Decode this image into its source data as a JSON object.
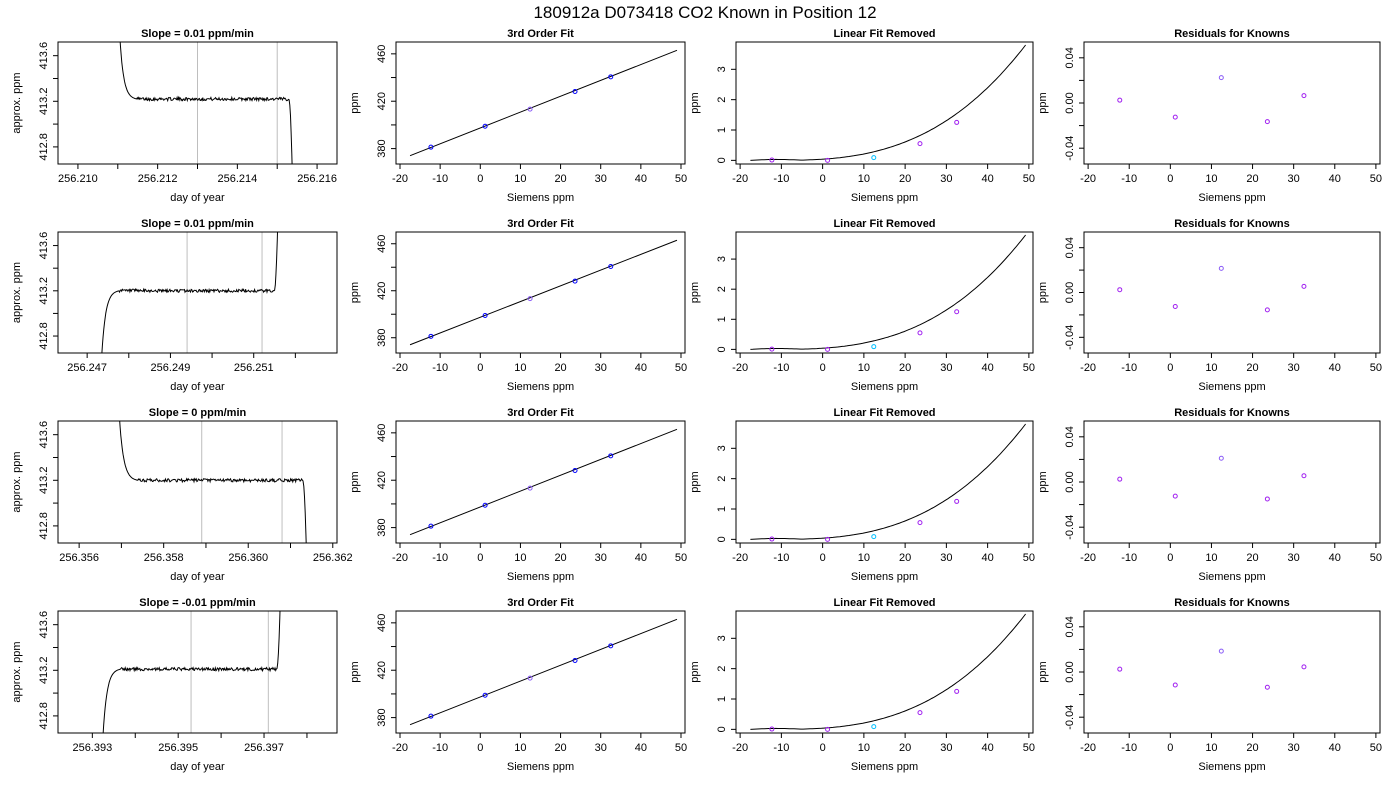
{
  "figure": {
    "title": "180912a      D073418    CO2 Known in Position  12"
  },
  "colors": {
    "axis": "#000000",
    "line": "#000000",
    "vline": "#bebebe",
    "point_blue": "#0000ff",
    "point_purple": "#a020f0",
    "point_cyan": "#00bfff",
    "point_violet": "#8a5cf6"
  },
  "common": {
    "day_xlabel": "day of year",
    "day_ylabel": "approx. ppm",
    "day_yticks": [
      "412.8",
      "413.2",
      "413.6"
    ],
    "fit_title": "3rd Order Fit",
    "lin_title": "Linear Fit Removed",
    "res_title": "Residuals for Knowns",
    "siemens_xlabel": "Siemens ppm",
    "ppm_ylabel": "ppm",
    "siemens_xticks": [
      "-20",
      "-10",
      "0",
      "10",
      "20",
      "30",
      "40",
      "50"
    ],
    "fit_yticks": [
      "380",
      "420",
      "460"
    ],
    "lin_yticks": [
      "0",
      "1",
      "2",
      "3"
    ],
    "res_yticks": [
      "-0.04",
      "0.00",
      "0.04"
    ]
  },
  "rows": [
    {
      "slope_title": "Slope =  0.01  ppm/min",
      "day_xticks": [
        "256.210",
        "256.212",
        "256.214",
        "256.216"
      ]
    },
    {
      "slope_title": "Slope =  0.01  ppm/min",
      "day_xticks": [
        "256.247",
        "256.249",
        "256.251"
      ]
    },
    {
      "slope_title": "Slope =  0  ppm/min",
      "day_xticks": [
        "256.356",
        "256.358",
        "256.360",
        "256.362"
      ]
    },
    {
      "slope_title": "Slope =  -0.01  ppm/min",
      "day_xticks": [
        "256.393",
        "256.395",
        "256.397"
      ]
    }
  ],
  "chart_data": [
    {
      "type": "line",
      "row": 0,
      "panel": "time-series",
      "xlabel": "day of year",
      "ylabel": "approx. ppm",
      "xlim": [
        256.2095,
        256.2165
      ],
      "ylim": [
        412.65,
        413.72
      ],
      "xticks": [
        256.21,
        256.211,
        256.212,
        256.213,
        256.214,
        256.215,
        256.216
      ],
      "yticks": [
        412.8,
        413.0,
        413.2,
        413.4,
        413.6
      ],
      "vlines": [
        256.213,
        256.215
      ],
      "trace_start": "high",
      "trace_end": "low",
      "trace_xrange": [
        256.211,
        256.2154
      ],
      "level": 413.22
    },
    {
      "type": "line",
      "row": 1,
      "panel": "time-series",
      "xlabel": "day of year",
      "ylabel": "approx. ppm",
      "xlim": [
        256.2463,
        256.253
      ],
      "ylim": [
        412.65,
        413.72
      ],
      "xticks": [
        256.247,
        256.248,
        256.249,
        256.25,
        256.251,
        256.252
      ],
      "yticks": [
        412.8,
        413.0,
        413.2,
        413.4,
        413.6
      ],
      "vlines": [
        256.2494,
        256.2512
      ],
      "trace_start": "low",
      "trace_end": "high",
      "trace_xrange": [
        256.2473,
        256.2516
      ],
      "level": 413.2
    },
    {
      "type": "line",
      "row": 2,
      "panel": "time-series",
      "xlabel": "day of year",
      "ylabel": "approx. ppm",
      "xlim": [
        256.3555,
        256.3621
      ],
      "ylim": [
        412.65,
        413.72
      ],
      "xticks": [
        256.356,
        256.357,
        256.358,
        256.359,
        256.36,
        256.361,
        256.362
      ],
      "yticks": [
        412.8,
        413.0,
        413.2,
        413.4,
        413.6
      ],
      "vlines": [
        256.3589,
        256.3608
      ],
      "trace_start": "high",
      "trace_end": "low",
      "trace_xrange": [
        256.3569,
        256.3614
      ],
      "level": 413.2
    },
    {
      "type": "line",
      "row": 3,
      "panel": "time-series",
      "xlabel": "day of year",
      "ylabel": "approx. ppm",
      "xlim": [
        256.3922,
        256.3987
      ],
      "ylim": [
        412.65,
        413.72
      ],
      "xticks": [
        256.393,
        256.394,
        256.395,
        256.396,
        256.397,
        256.398
      ],
      "yticks": [
        412.8,
        413.0,
        413.2,
        413.4,
        413.6
      ],
      "vlines": [
        256.3953,
        256.3971
      ],
      "trace_start": "low",
      "trace_end": "high",
      "trace_xrange": [
        256.3932,
        256.3974
      ],
      "level": 413.21
    },
    {
      "type": "scatter",
      "panel": "3rd-order-fit",
      "title": "3rd Order Fit",
      "xlabel": "Siemens ppm",
      "ylabel": "ppm",
      "xlim": [
        -21,
        51
      ],
      "ylim": [
        367,
        470
      ],
      "xticks": [
        -20,
        -10,
        0,
        10,
        20,
        30,
        40,
        50
      ],
      "yticks": [
        380,
        400,
        420,
        440,
        460
      ],
      "points": {
        "x": [
          -12.3,
          1.2,
          12.4,
          23.6,
          32.5
        ],
        "y": [
          381.2,
          398.9,
          413.3,
          428.2,
          440.6
        ],
        "colors": [
          "#0000ff",
          "#0000ff",
          "#8a5cf6",
          "#0000ff",
          "#0000ff"
        ]
      },
      "fit_line": {
        "x": [
          -17.5,
          49
        ],
        "y": [
          374,
          463
        ]
      }
    },
    {
      "type": "scatter",
      "panel": "linear-fit-removed",
      "title": "Linear Fit Removed",
      "xlabel": "Siemens ppm",
      "ylabel": "ppm",
      "xlim": [
        -21,
        51
      ],
      "ylim": [
        -0.12,
        3.9
      ],
      "xticks": [
        -20,
        -10,
        0,
        10,
        20,
        30,
        40,
        50
      ],
      "yticks": [
        0,
        1,
        2,
        3
      ],
      "points": {
        "x": [
          -12.3,
          1.2,
          12.4,
          23.6,
          32.5
        ],
        "y": [
          0.01,
          0.0,
          0.09,
          0.55,
          1.25
        ],
        "colors": [
          "#a020f0",
          "#a020f0",
          "#00bfff",
          "#a020f0",
          "#a020f0"
        ]
      },
      "curve": "cubic",
      "curve_xrange": [
        -17.5,
        49.2
      ],
      "curve_end_y": 3.8
    },
    {
      "type": "scatter",
      "panel": "residuals",
      "title": "Residuals for Knowns",
      "xlabel": "Siemens ppm",
      "ylabel": "ppm",
      "xlim": [
        -21,
        51
      ],
      "ylim": [
        -0.054,
        0.054
      ],
      "xticks": [
        -20,
        -10,
        0,
        10,
        20,
        30,
        40,
        50
      ],
      "yticks": [
        -0.04,
        -0.02,
        0.0,
        0.02,
        0.04
      ],
      "series": [
        {
          "row": 0,
          "x": [
            -12.3,
            1.2,
            12.4,
            23.6,
            32.5
          ],
          "y": [
            0.0025,
            -0.0125,
            0.0225,
            -0.0165,
            0.0065
          ]
        },
        {
          "row": 1,
          "x": [
            -12.3,
            1.2,
            12.4,
            23.6,
            32.5
          ],
          "y": [
            0.0025,
            -0.0125,
            0.0215,
            -0.0155,
            0.0055
          ]
        },
        {
          "row": 2,
          "x": [
            -12.3,
            1.2,
            12.4,
            23.6,
            32.5
          ],
          "y": [
            0.0025,
            -0.0125,
            0.021,
            -0.015,
            0.0055
          ]
        },
        {
          "row": 3,
          "x": [
            -12.3,
            1.2,
            12.4,
            23.6,
            32.5
          ],
          "y": [
            0.0025,
            -0.0115,
            0.0185,
            -0.0135,
            0.0045
          ]
        }
      ],
      "point_colors": [
        "#a020f0",
        "#a020f0",
        "#8a5cf6",
        "#a020f0",
        "#a020f0"
      ]
    }
  ]
}
